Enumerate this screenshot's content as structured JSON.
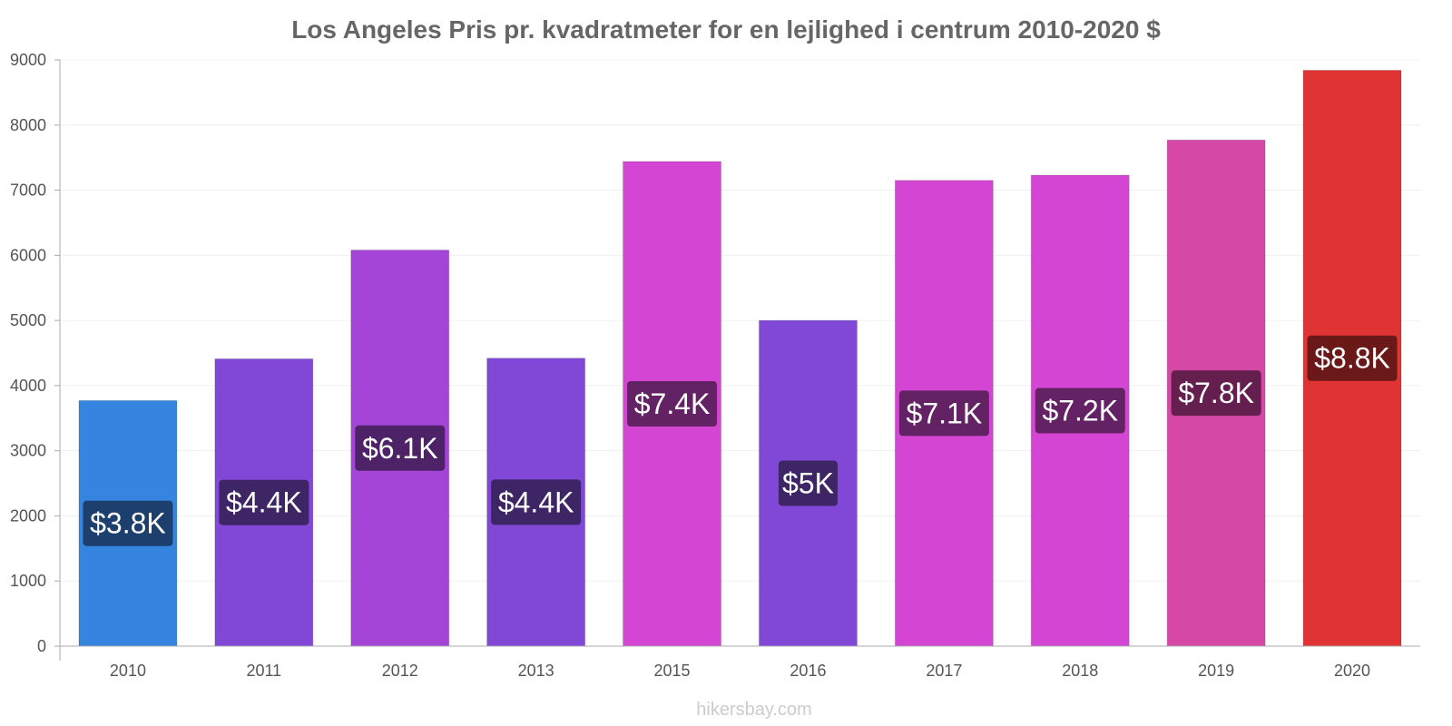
{
  "site": {
    "credit": "hikersbay.com"
  },
  "chart_data": {
    "type": "bar",
    "title": "Los Angeles Pris pr. kvadratmeter for en lejlighed i centrum 2010-2020 $",
    "xlabel": "",
    "ylabel": "",
    "ylim": [
      0,
      9000
    ],
    "yticks": [
      0,
      1000,
      2000,
      3000,
      4000,
      5000,
      6000,
      7000,
      8000,
      9000
    ],
    "grid": true,
    "categories": [
      "2010",
      "2011",
      "2012",
      "2013",
      "2015",
      "2016",
      "2017",
      "2018",
      "2019",
      "2020"
    ],
    "values": [
      3770,
      4410,
      6080,
      4420,
      7440,
      5000,
      7150,
      7230,
      7770,
      8840
    ],
    "labels": [
      "$3.8K",
      "$4.4K",
      "$6.1K",
      "$4.4K",
      "$7.4K",
      "$5K",
      "$7.1K",
      "$7.2K",
      "$7.8K",
      "$8.8K"
    ],
    "colors": [
      "#3584e0",
      "#8148d8",
      "#a445d8",
      "#8148d8",
      "#d445d4",
      "#8148d8",
      "#d445d4",
      "#d445d4",
      "#d648a6",
      "#e03434"
    ],
    "label_bg_colors": [
      "#1c3f6e",
      "#3d2566",
      "#4e2266",
      "#3d2566",
      "#632264",
      "#3d2566",
      "#632264",
      "#632264",
      "#651f4e",
      "#6b1818"
    ]
  }
}
